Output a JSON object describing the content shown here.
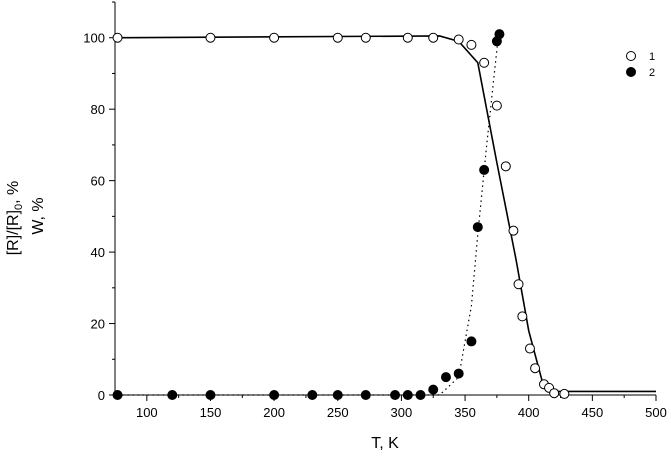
{
  "chart_data": {
    "type": "scatter",
    "xlabel": "T, K",
    "ylabel_line1": "[R]/[R]",
    "ylabel_sub": "0",
    "ylabel_suffix": ", %",
    "ylabel_line2": "W, %",
    "xlim": [
      75,
      500
    ],
    "ylim": [
      0,
      110
    ],
    "xticks": [
      100,
      150,
      200,
      250,
      300,
      350,
      400,
      450,
      500
    ],
    "yticks": [
      0,
      20,
      40,
      60,
      80,
      100
    ],
    "grid": false,
    "legend_position": "top-right",
    "series": [
      {
        "name": "1",
        "marker": "open-circle",
        "points": [
          [
            77,
            100
          ],
          [
            150,
            100
          ],
          [
            200,
            100
          ],
          [
            250,
            100
          ],
          [
            272,
            100
          ],
          [
            305,
            100
          ],
          [
            325,
            100
          ],
          [
            345,
            99.5
          ],
          [
            355,
            98
          ],
          [
            365,
            93
          ],
          [
            375,
            81
          ],
          [
            382,
            64
          ],
          [
            388,
            46
          ],
          [
            392,
            31
          ],
          [
            395,
            22
          ],
          [
            401,
            13
          ],
          [
            405,
            7.5
          ],
          [
            412,
            3
          ],
          [
            416,
            2
          ],
          [
            420,
            0.5
          ],
          [
            428,
            0.3
          ]
        ],
        "fit_line": [
          [
            77,
            100
          ],
          [
            330,
            100.5
          ],
          [
            345,
            99
          ],
          [
            360,
            93
          ],
          [
            375,
            65
          ],
          [
            390,
            38
          ],
          [
            400,
            18
          ],
          [
            412,
            2
          ],
          [
            418,
            1
          ],
          [
            500,
            1
          ]
        ]
      },
      {
        "name": "2",
        "marker": "filled-circle",
        "points": [
          [
            77,
            0
          ],
          [
            120,
            0
          ],
          [
            150,
            0
          ],
          [
            200,
            0
          ],
          [
            230,
            0
          ],
          [
            250,
            0
          ],
          [
            272,
            0
          ],
          [
            295,
            0
          ],
          [
            305,
            0
          ],
          [
            315,
            0
          ],
          [
            325,
            1.5
          ],
          [
            335,
            5
          ],
          [
            345,
            6
          ],
          [
            355,
            15
          ],
          [
            360,
            47
          ],
          [
            365,
            63
          ],
          [
            375,
            99
          ],
          [
            377,
            101
          ]
        ],
        "fit_line": [
          [
            77,
            0
          ],
          [
            330,
            0
          ],
          [
            345,
            5
          ],
          [
            355,
            25
          ],
          [
            360,
            45
          ],
          [
            367,
            70
          ],
          [
            376,
            100
          ]
        ]
      }
    ]
  }
}
